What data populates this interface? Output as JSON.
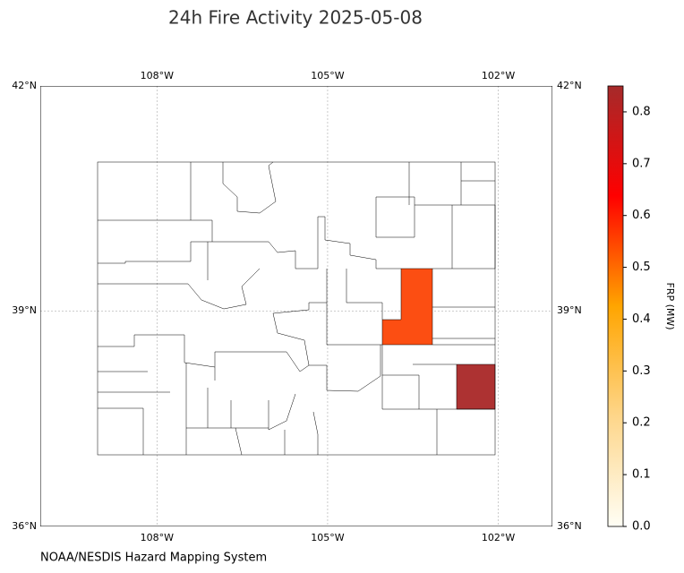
{
  "title": "24h Fire Activity 2025-05-08",
  "map": {
    "lonlim": [
      -110.05,
      -101.05
    ],
    "latlim": [
      36,
      42
    ],
    "lon_ticks": [
      {
        "value": -108,
        "label": "108°W"
      },
      {
        "value": -105,
        "label": "105°W"
      },
      {
        "value": -102,
        "label": "102°W"
      }
    ],
    "lat_ticks": [
      {
        "value": 42,
        "label": "42°N"
      },
      {
        "value": 39,
        "label": "39°N"
      },
      {
        "value": 36,
        "label": "36°N"
      }
    ],
    "fires": [
      {
        "value": 0.47,
        "color": "#fc4e12"
      },
      {
        "value": 0.85,
        "color": "#ad3232"
      }
    ]
  },
  "colorbar": {
    "label": "FRP (MW)",
    "lim": [
      0,
      0.85
    ],
    "ticks": [
      {
        "value": 0,
        "label": "0.0"
      },
      0.1,
      0.2,
      0.3,
      0.4,
      0.5,
      0.6,
      0.7,
      0.8
    ],
    "colors": [
      "#fffef5",
      "#fed68a",
      "#ffa500",
      "#ff0000",
      "#a52a2a"
    ]
  },
  "source": "NOAA/NESDIS Hazard Mapping System"
}
